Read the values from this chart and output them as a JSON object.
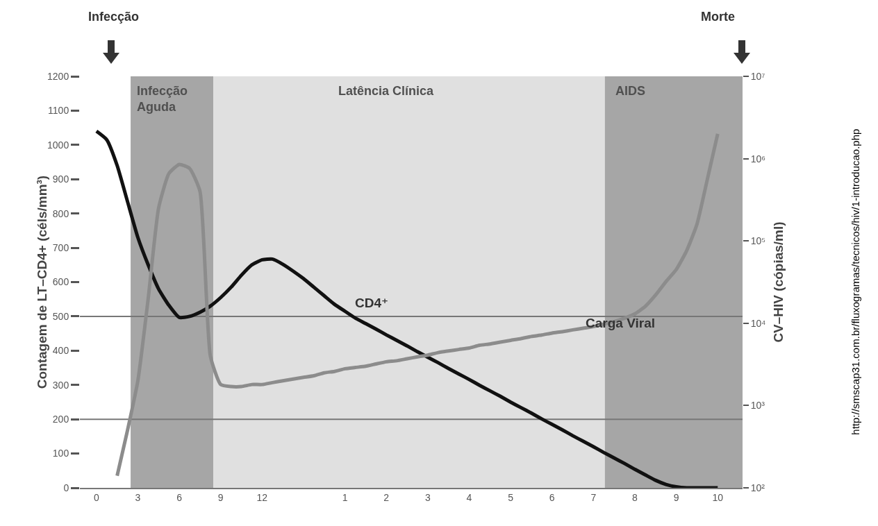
{
  "chart_data": {
    "type": "line",
    "ylabel": "Contagem de LT–CD4+ (céls/mm³)",
    "y2label": "CV–HIV (cópias/ml)",
    "categories": [
      "0",
      null,
      null,
      null,
      "3",
      null,
      null,
      null,
      "6",
      null,
      null,
      null,
      "9",
      null,
      null,
      null,
      "12",
      null,
      null,
      null,
      null,
      null,
      null,
      null,
      "1",
      null,
      null,
      null,
      "2",
      null,
      null,
      null,
      "3",
      null,
      null,
      null,
      "4",
      null,
      null,
      null,
      "5",
      null,
      null,
      null,
      "6",
      null,
      null,
      null,
      "7",
      null,
      null,
      null,
      "8",
      null,
      null,
      null,
      "9",
      null,
      null,
      null,
      "10"
    ],
    "ylim": [
      0,
      1200
    ],
    "yticks": [
      0,
      100,
      200,
      300,
      400,
      500,
      600,
      700,
      800,
      900,
      1000,
      1100,
      1200
    ],
    "log": "y2",
    "y2lim": [
      100,
      10000000
    ],
    "y2ticks": [
      {
        "value": 100,
        "label": "10²"
      },
      {
        "value": 1000,
        "label": "10³"
      },
      {
        "value": 10000,
        "label": "10⁴"
      },
      {
        "value": 100000,
        "label": "10⁵"
      },
      {
        "value": 1000000,
        "label": "10⁶"
      },
      {
        "value": 10000000,
        "label": "10⁷"
      }
    ],
    "grid": false,
    "legend": false,
    "marker": "none",
    "line_style": "solid",
    "series": [
      {
        "name": "CD4⁺",
        "color": "#111111",
        "values": [
          1040,
          1015,
          940,
          835,
          730,
          650,
          580,
          532,
          497,
          500,
          512,
          530,
          555,
          585,
          620,
          650,
          665,
          667,
          652,
          632,
          610,
          585,
          560,
          535,
          515,
          495,
          479,
          463,
          446,
          430,
          414,
          397,
          381,
          365,
          348,
          332,
          316,
          299,
          283,
          267,
          250,
          234,
          218,
          201,
          185,
          169,
          152,
          136,
          120,
          103,
          87,
          71,
          54,
          38,
          22,
          10,
          3,
          0,
          0,
          0,
          0
        ]
      },
      {
        "name": "Carga Viral",
        "color": "#8c8c8c",
        "axis": "y2",
        "values": [
          null,
          null,
          140,
          500,
          2000,
          20000,
          250000,
          660000,
          850000,
          760000,
          400000,
          4000,
          1800,
          1700,
          1700,
          1800,
          1800,
          1900,
          2000,
          2100,
          2200,
          2300,
          2500,
          2600,
          2800,
          2900,
          3000,
          3200,
          3400,
          3500,
          3700,
          3900,
          4100,
          4400,
          4600,
          4800,
          5000,
          5400,
          5600,
          5900,
          6200,
          6500,
          6900,
          7200,
          7600,
          7900,
          8300,
          8700,
          9100,
          9800,
          10500,
          11500,
          13000,
          16000,
          22000,
          32000,
          45000,
          76000,
          160000,
          560000,
          2000000
        ]
      }
    ],
    "ref_lines": [
      {
        "axis": "y",
        "value": 500,
        "color": "#777777"
      },
      {
        "axis": "y",
        "value": 200,
        "color": "#777777"
      }
    ],
    "annotations": [
      "Infecção",
      "Morte",
      "http://smscap31.com.br/fluxogramas/tecnicos/hiv/1-introducao.php",
      "Infecção\nAguda",
      "Latência Clínica",
      "AIDS"
    ]
  }
}
